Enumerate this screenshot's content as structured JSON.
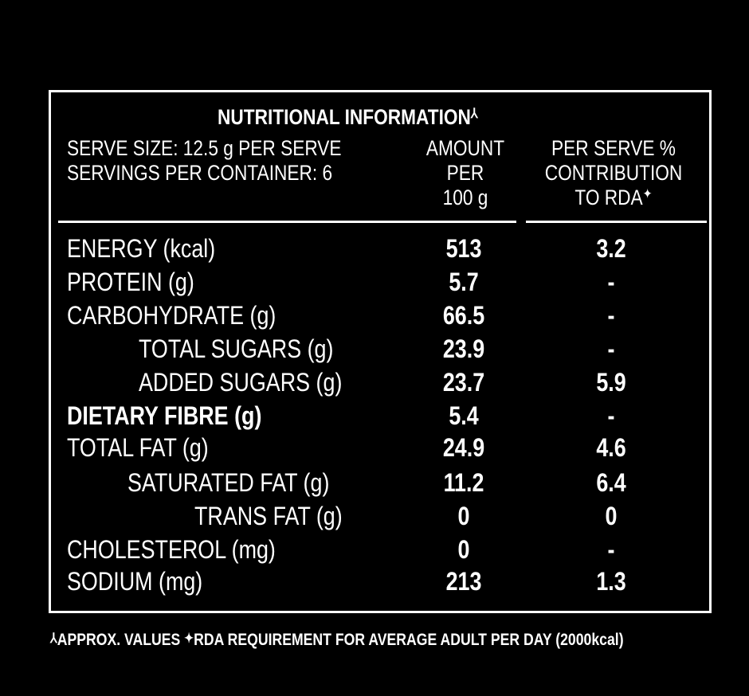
{
  "title": "NUTRITIONAL INFORMATION",
  "title_mark": "⅄",
  "serve_size": "SERVE SIZE: 12.5 g PER SERVE",
  "servings": "SERVINGS PER CONTAINER: 6",
  "col_amount": [
    "AMOUNT",
    "PER",
    "100 g"
  ],
  "col_rda": [
    "PER SERVE %",
    "CONTRIBUTION",
    "TO RDA"
  ],
  "rda_mark": "✦",
  "rows": [
    {
      "label": "ENERGY (kcal)",
      "amount": "513",
      "rda": "3.2"
    },
    {
      "label": "PROTEIN (g)",
      "amount": "5.7",
      "rda": "-"
    },
    {
      "label": "CARBOHYDRATE (g)",
      "amount": "66.5",
      "rda": "-"
    },
    {
      "label": "TOTAL SUGARS (g)",
      "amount": "23.9",
      "rda": "-"
    },
    {
      "label": "ADDED SUGARS (g)",
      "amount": "23.7",
      "rda": "5.9"
    },
    {
      "label": "DIETARY FIBRE (g)",
      "amount": "5.4",
      "rda": "-"
    },
    {
      "label": "TOTAL FAT (g)",
      "amount": "24.9",
      "rda": "4.6"
    },
    {
      "label": "SATURATED FAT (g)",
      "amount": "11.2",
      "rda": "6.4"
    },
    {
      "label": "TRANS FAT (g)",
      "amount": "0",
      "rda": "0"
    },
    {
      "label": "CHOLESTEROL (mg)",
      "amount": "0",
      "rda": "-"
    },
    {
      "label": "SODIUM  (mg)",
      "amount": "213",
      "rda": "1.3"
    }
  ],
  "footnote": {
    "mark1": "⅄",
    "text1": "APPROX. VALUES ",
    "mark2": "✦",
    "text2": "RDA REQUIREMENT FOR AVERAGE ADULT PER DAY (2000kcal)"
  }
}
